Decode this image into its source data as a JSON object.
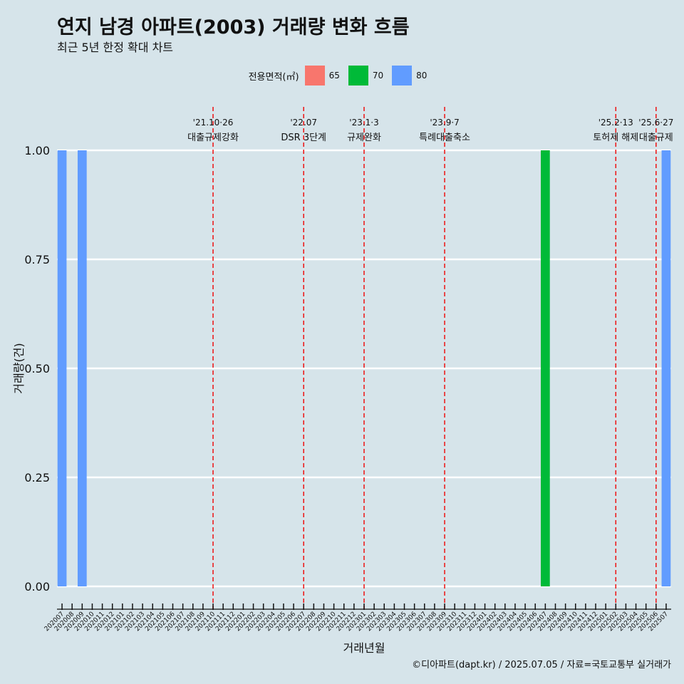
{
  "title": "연지 남경 아파트(2003) 거래량 변화 흐름",
  "subtitle": "최근 5년 한정 확대 차트",
  "caption": "©디아파트(dapt.kr) / 2025.07.05 / 자료=국토교통부 실거래가",
  "legend": {
    "title": "전용면적(㎡)",
    "items": [
      {
        "label": "65",
        "color": "#f8766d"
      },
      {
        "label": "70",
        "color": "#00ba38"
      },
      {
        "label": "80",
        "color": "#619cff"
      }
    ]
  },
  "chart_data": {
    "type": "bar",
    "xlabel": "거래년월",
    "ylabel": "거래량(건)",
    "ylim": [
      0,
      1
    ],
    "yticks": [
      "0.00",
      "0.25",
      "0.50",
      "0.75",
      "1.00"
    ],
    "grid": true,
    "legend_position": "top",
    "categories": [
      "202007",
      "202008",
      "202009",
      "202010",
      "202011",
      "202012",
      "202101",
      "202102",
      "202103",
      "202104",
      "202105",
      "202106",
      "202107",
      "202108",
      "202109",
      "202110",
      "202111",
      "202112",
      "202201",
      "202202",
      "202203",
      "202204",
      "202205",
      "202206",
      "202207",
      "202208",
      "202209",
      "202210",
      "202211",
      "202212",
      "202301",
      "202302",
      "202303",
      "202304",
      "202305",
      "202306",
      "202307",
      "202308",
      "202309",
      "202310",
      "202311",
      "202312",
      "202401",
      "202402",
      "202403",
      "202404",
      "202405",
      "202406",
      "202407",
      "202408",
      "202409",
      "202410",
      "202411",
      "202412",
      "202501",
      "202502",
      "202503",
      "202504",
      "202505",
      "202506",
      "202507"
    ],
    "series": [
      {
        "name": "65",
        "color": "#f8766d",
        "points": []
      },
      {
        "name": "70",
        "color": "#00ba38",
        "points": [
          {
            "x": "202407",
            "y": 1
          }
        ]
      },
      {
        "name": "80",
        "color": "#619cff",
        "points": [
          {
            "x": "202007",
            "y": 1
          },
          {
            "x": "202009",
            "y": 1
          },
          {
            "x": "202507",
            "y": 1
          }
        ]
      }
    ],
    "annotations": [
      {
        "x": "202110",
        "date": "'21.10·26",
        "text": "대출규제강화"
      },
      {
        "x": "202207",
        "date": "'22.07",
        "text": "DSR 3단계"
      },
      {
        "x": "202301",
        "date": "'23.1·3",
        "text": "규제완화"
      },
      {
        "x": "202309",
        "date": "'23.9·7",
        "text": "특례대출축소"
      },
      {
        "x": "202502",
        "date": "'25.2·13",
        "text": "토허제 해제"
      },
      {
        "x": "202506",
        "date": "'25.6·27",
        "text": "대출규제"
      }
    ]
  }
}
